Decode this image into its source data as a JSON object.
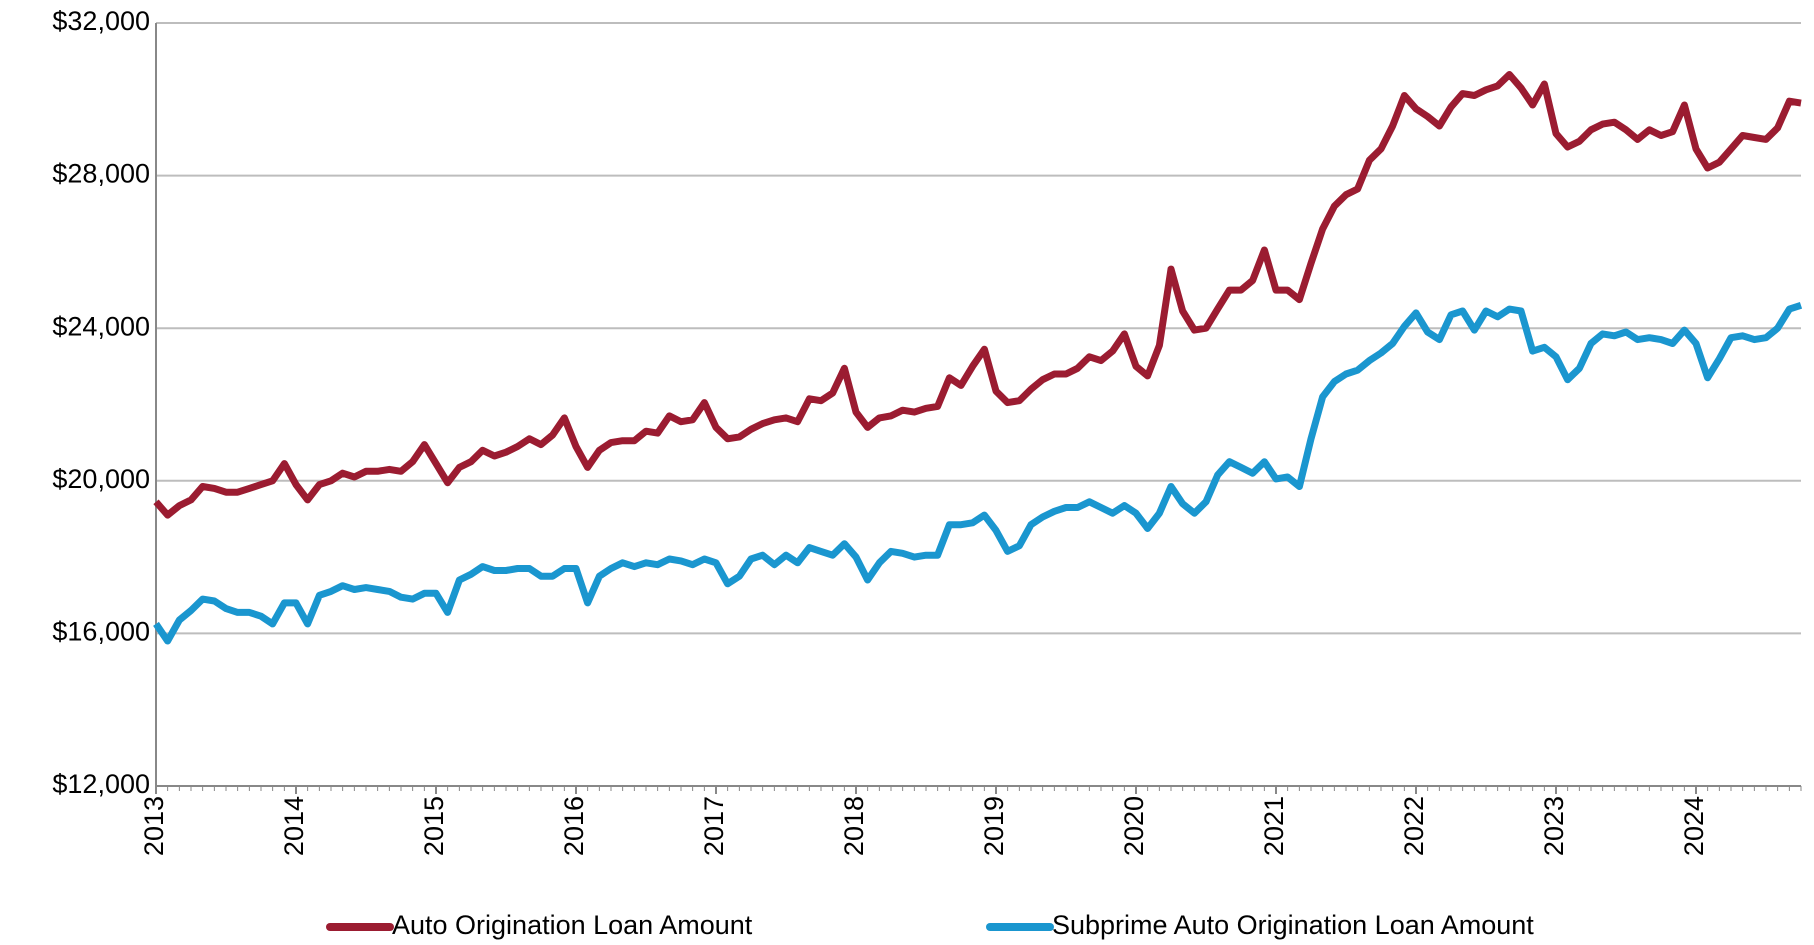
{
  "chart_data": {
    "type": "line",
    "x": [
      2013,
      2013.083,
      2013.167,
      2013.25,
      2013.333,
      2013.417,
      2013.5,
      2013.583,
      2013.667,
      2013.75,
      2013.833,
      2013.917,
      2014,
      2014.083,
      2014.167,
      2014.25,
      2014.333,
      2014.417,
      2014.5,
      2014.583,
      2014.667,
      2014.75,
      2014.833,
      2014.917,
      2015,
      2015.083,
      2015.167,
      2015.25,
      2015.333,
      2015.417,
      2015.5,
      2015.583,
      2015.667,
      2015.75,
      2015.833,
      2015.917,
      2016,
      2016.083,
      2016.167,
      2016.25,
      2016.333,
      2016.417,
      2016.5,
      2016.583,
      2016.667,
      2016.75,
      2016.833,
      2016.917,
      2017,
      2017.083,
      2017.167,
      2017.25,
      2017.333,
      2017.417,
      2017.5,
      2017.583,
      2017.667,
      2017.75,
      2017.833,
      2017.917,
      2018,
      2018.083,
      2018.167,
      2018.25,
      2018.333,
      2018.417,
      2018.5,
      2018.583,
      2018.667,
      2018.75,
      2018.833,
      2018.917,
      2019,
      2019.083,
      2019.167,
      2019.25,
      2019.333,
      2019.417,
      2019.5,
      2019.583,
      2019.667,
      2019.75,
      2019.833,
      2019.917,
      2020,
      2020.083,
      2020.167,
      2020.25,
      2020.333,
      2020.417,
      2020.5,
      2020.583,
      2020.667,
      2020.75,
      2020.833,
      2020.917,
      2021,
      2021.083,
      2021.167,
      2021.25,
      2021.333,
      2021.417,
      2021.5,
      2021.583,
      2021.667,
      2021.75,
      2021.833,
      2021.917,
      2022,
      2022.083,
      2022.167,
      2022.25,
      2022.333,
      2022.417,
      2022.5,
      2022.583,
      2022.667,
      2022.75,
      2022.833,
      2022.917,
      2023,
      2023.083,
      2023.167,
      2023.25,
      2023.333,
      2023.417,
      2023.5,
      2023.583,
      2023.667,
      2023.75,
      2023.833,
      2023.917,
      2024,
      2024.083,
      2024.167,
      2024.25,
      2024.333,
      2024.417,
      2024.5,
      2024.583,
      2024.667,
      2024.75
    ],
    "series": [
      {
        "name": "Auto Origination Loan Amount",
        "color": "#9b1c31",
        "values": [
          19450,
          19100,
          19350,
          19500,
          19850,
          19800,
          19700,
          19700,
          19800,
          19900,
          20000,
          20450,
          19900,
          19500,
          19900,
          20000,
          20200,
          20100,
          20250,
          20250,
          20300,
          20250,
          20500,
          20950,
          20450,
          19950,
          20350,
          20500,
          20800,
          20650,
          20750,
          20900,
          21100,
          20950,
          21200,
          21650,
          20900,
          20350,
          20800,
          21000,
          21050,
          21050,
          21300,
          21250,
          21700,
          21550,
          21600,
          22050,
          21400,
          21100,
          21150,
          21350,
          21500,
          21600,
          21650,
          21550,
          22150,
          22100,
          22300,
          22950,
          21800,
          21400,
          21650,
          21700,
          21850,
          21800,
          21900,
          21950,
          22700,
          22500,
          23000,
          23450,
          22350,
          22050,
          22100,
          22400,
          22650,
          22800,
          22800,
          22950,
          23250,
          23150,
          23400,
          23850,
          23000,
          22750,
          23550,
          25550,
          24450,
          23950,
          24000,
          24500,
          25000,
          25000,
          25250,
          26050,
          25000,
          25000,
          24750,
          25700,
          26600,
          27200,
          27500,
          27650,
          28400,
          28700,
          29300,
          30100,
          29750,
          29550,
          29300,
          29800,
          30150,
          30100,
          30250,
          30350,
          30650,
          30300,
          29850,
          30400,
          29100,
          28750,
          28900,
          29200,
          29350,
          29400,
          29200,
          28950,
          29200,
          29050,
          29150,
          29850,
          28700,
          28200,
          28350,
          28700,
          29050,
          29000,
          28950,
          29250,
          29950,
          29900
        ]
      },
      {
        "name": "Subprime Auto Origination Loan Amount",
        "color": "#1a96cf",
        "values": [
          16250,
          15800,
          16350,
          16600,
          16900,
          16850,
          16650,
          16550,
          16550,
          16450,
          16250,
          16800,
          16800,
          16250,
          17000,
          17100,
          17250,
          17150,
          17200,
          17150,
          17100,
          16950,
          16900,
          17050,
          17050,
          16550,
          17400,
          17550,
          17750,
          17650,
          17650,
          17700,
          17700,
          17500,
          17500,
          17700,
          17700,
          16800,
          17500,
          17700,
          17850,
          17750,
          17850,
          17800,
          17950,
          17900,
          17800,
          17950,
          17850,
          17300,
          17500,
          17950,
          18050,
          17800,
          18050,
          17850,
          18250,
          18150,
          18050,
          18350,
          18000,
          17400,
          17850,
          18150,
          18100,
          18000,
          18050,
          18050,
          18850,
          18850,
          18900,
          19100,
          18700,
          18150,
          18300,
          18850,
          19050,
          19200,
          19300,
          19300,
          19450,
          19300,
          19150,
          19350,
          19150,
          18750,
          19150,
          19850,
          19400,
          19150,
          19450,
          20150,
          20500,
          20350,
          20200,
          20500,
          20050,
          20100,
          19850,
          21100,
          22200,
          22600,
          22800,
          22900,
          23150,
          23350,
          23600,
          24050,
          24400,
          23900,
          23700,
          24350,
          24450,
          23950,
          24450,
          24300,
          24500,
          24450,
          23400,
          23500,
          23250,
          22650,
          22950,
          23600,
          23850,
          23800,
          23900,
          23700,
          23750,
          23700,
          23600,
          23950,
          23600,
          22700,
          23200,
          23750,
          23800,
          23700,
          23750,
          24000,
          24500,
          24600
        ]
      }
    ],
    "xlim": [
      2013,
      2024.75
    ],
    "xticks": [
      2013,
      2014,
      2015,
      2016,
      2017,
      2018,
      2019,
      2020,
      2021,
      2022,
      2023,
      2024
    ],
    "ylim": [
      12000,
      32000
    ],
    "yticks": [
      {
        "value": 12000,
        "label": "$12,000"
      },
      {
        "value": 16000,
        "label": "$16,000"
      },
      {
        "value": 20000,
        "label": "$20,000"
      },
      {
        "value": 24000,
        "label": "$24,000"
      },
      {
        "value": 28000,
        "label": "$28,000"
      },
      {
        "value": 32000,
        "label": "$32,000"
      }
    ],
    "grid": true,
    "legend": "bottom"
  }
}
